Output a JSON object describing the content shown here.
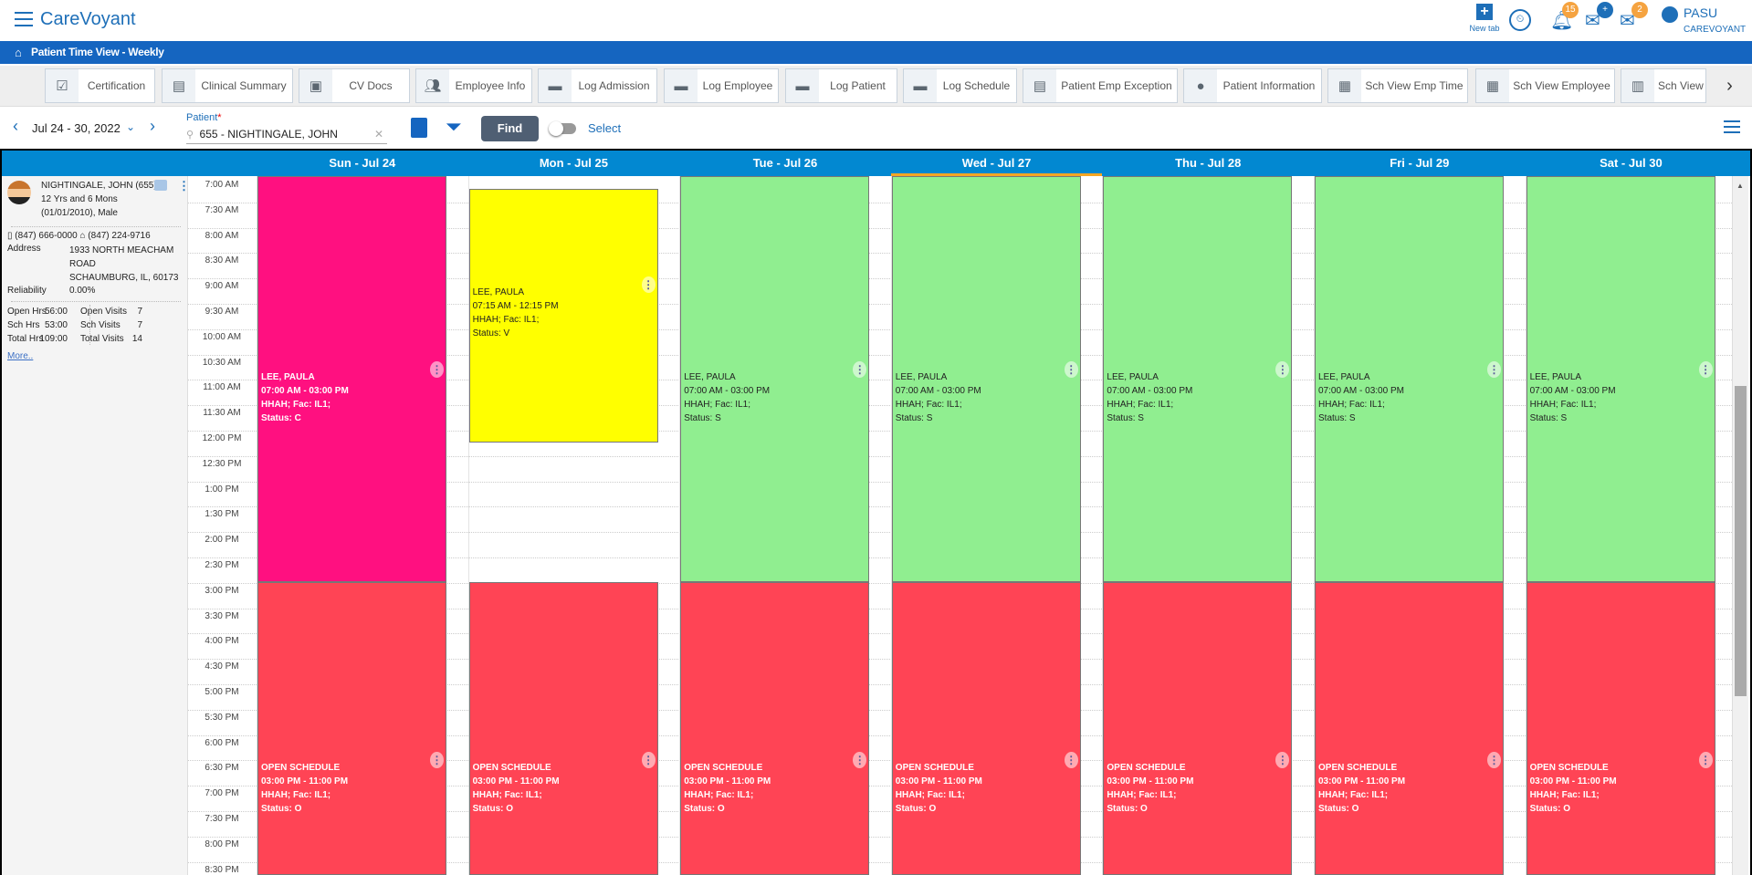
{
  "app": {
    "title": "CareVoyant"
  },
  "topbar": {
    "new_tab_label": "New tab",
    "notifications_count": "15",
    "messages_count": "2",
    "user_name": "PASU",
    "user_org": "CAREVOYANT"
  },
  "breadcrumb": {
    "title": "Patient Time View - Weekly"
  },
  "quick_tabs": [
    {
      "label": "Certification",
      "icon": "clipboard-check"
    },
    {
      "label": "Clinical Summary",
      "icon": "clipboard-list"
    },
    {
      "label": "CV Docs",
      "icon": "document-image"
    },
    {
      "label": "Employee Info",
      "icon": "people"
    },
    {
      "label": "Log Admission",
      "icon": "comment"
    },
    {
      "label": "Log Employee",
      "icon": "comment"
    },
    {
      "label": "Log Patient",
      "icon": "comment"
    },
    {
      "label": "Log Schedule",
      "icon": "comment"
    },
    {
      "label": "Patient Emp Exception",
      "icon": "clipboard-list"
    },
    {
      "label": "Patient Information",
      "icon": "person"
    },
    {
      "label": "Sch View Emp Time",
      "icon": "grid"
    },
    {
      "label": "Sch View Employee",
      "icon": "grid"
    },
    {
      "label": "Sch View",
      "icon": "columns"
    }
  ],
  "toolbar": {
    "date_range": "Jul 24 - 30, 2022",
    "patient_label": "Patient",
    "patient_value": "655 - NIGHTINGALE, JOHN",
    "find_label": "Find",
    "select_label": "Select",
    "select_on": false
  },
  "days": [
    "Sun - Jul 24",
    "Mon - Jul 25",
    "Tue - Jul 26",
    "Wed - Jul 27",
    "Thu - Jul 28",
    "Fri - Jul 29",
    "Sat - Jul 30"
  ],
  "today_index": 3,
  "patient": {
    "name": "NIGHTINGALE, JOHN (655)",
    "age": "12 Yrs and 6 Mons",
    "dob_gender": "(01/01/2010), Male",
    "mobile": "(847) 666-0000",
    "home": "(847) 224-9716",
    "address_label": "Address",
    "address_lines": [
      "1933 NORTH MEACHAM",
      "ROAD",
      "SCHAUMBURG, IL, 60173"
    ],
    "reliability_label": "Reliability",
    "reliability": "0.00%",
    "stats": [
      {
        "l1": "Open Hrs",
        "v1": "56:00",
        "l2": "Open Visits",
        "v2": "7"
      },
      {
        "l1": "Sch Hrs",
        "v1": "53:00",
        "l2": "Sch Visits",
        "v2": "7"
      },
      {
        "l1": "Total Hrs",
        "v1": "109:00",
        "l2": "Total Visits",
        "v2": "14"
      }
    ],
    "more_label": "More.."
  },
  "time_labels": [
    "7:00 AM",
    "7:30 AM",
    "8:00 AM",
    "8:30 AM",
    "9:00 AM",
    "9:30 AM",
    "10:00 AM",
    "10:30 AM",
    "11:00 AM",
    "11:30 AM",
    "12:00 PM",
    "12:30 PM",
    "1:00 PM",
    "1:30 PM",
    "2:00 PM",
    "2:30 PM",
    "3:00 PM",
    "3:30 PM",
    "4:00 PM",
    "4:30 PM",
    "5:00 PM",
    "5:30 PM",
    "6:00 PM",
    "6:30 PM",
    "7:00 PM",
    "7:30 PM",
    "8:00 PM",
    "8:30 PM"
  ],
  "colors": {
    "scheduled": "#90ee90",
    "completed": "#ff1080",
    "verified": "#ffff00",
    "open": "#ff4455",
    "header": "#0288d1",
    "brand": "#1565c0"
  },
  "events": [
    {
      "day": 0,
      "start": 7,
      "end": 15,
      "lines": [
        "LEE, PAULA",
        "07:00 AM - 03:00 PM",
        "HHAH; Fac: IL1;",
        "Status: C"
      ],
      "color": "#ff1080",
      "text": "#fff"
    },
    {
      "day": 1,
      "start": 7.25,
      "end": 12.25,
      "lines": [
        "LEE, PAULA",
        "07:15 AM - 12:15 PM",
        "HHAH; Fac: IL1;",
        "Status: V"
      ],
      "color": "#ffff00",
      "text": "#222"
    },
    {
      "day": 2,
      "start": 7,
      "end": 15,
      "lines": [
        "LEE, PAULA",
        "07:00 AM - 03:00 PM",
        "HHAH; Fac: IL1;",
        "Status: S"
      ],
      "color": "#90ee90",
      "text": "#222"
    },
    {
      "day": 3,
      "start": 7,
      "end": 15,
      "lines": [
        "LEE, PAULA",
        "07:00 AM - 03:00 PM",
        "HHAH; Fac: IL1;",
        "Status: S"
      ],
      "color": "#90ee90",
      "text": "#222"
    },
    {
      "day": 4,
      "start": 7,
      "end": 15,
      "lines": [
        "LEE, PAULA",
        "07:00 AM - 03:00 PM",
        "HHAH; Fac: IL1;",
        "Status: S"
      ],
      "color": "#90ee90",
      "text": "#222"
    },
    {
      "day": 5,
      "start": 7,
      "end": 15,
      "lines": [
        "LEE, PAULA",
        "07:00 AM - 03:00 PM",
        "HHAH; Fac: IL1;",
        "Status: S"
      ],
      "color": "#90ee90",
      "text": "#222"
    },
    {
      "day": 6,
      "start": 7,
      "end": 15,
      "lines": [
        "LEE, PAULA",
        "07:00 AM - 03:00 PM",
        "HHAH; Fac: IL1;",
        "Status: S"
      ],
      "color": "#90ee90",
      "text": "#222"
    },
    {
      "day": 0,
      "start": 15,
      "end": 23,
      "lines": [
        "OPEN SCHEDULE",
        "03:00 PM - 11:00 PM",
        "HHAH; Fac: IL1;",
        "Status: O"
      ],
      "color": "#ff4455",
      "text": "#fff"
    },
    {
      "day": 1,
      "start": 15,
      "end": 23,
      "lines": [
        "OPEN SCHEDULE",
        "03:00 PM - 11:00 PM",
        "HHAH; Fac: IL1;",
        "Status: O"
      ],
      "color": "#ff4455",
      "text": "#fff"
    },
    {
      "day": 2,
      "start": 15,
      "end": 23,
      "lines": [
        "OPEN SCHEDULE",
        "03:00 PM - 11:00 PM",
        "HHAH; Fac: IL1;",
        "Status: O"
      ],
      "color": "#ff4455",
      "text": "#fff"
    },
    {
      "day": 3,
      "start": 15,
      "end": 23,
      "lines": [
        "OPEN SCHEDULE",
        "03:00 PM - 11:00 PM",
        "HHAH; Fac: IL1;",
        "Status: O"
      ],
      "color": "#ff4455",
      "text": "#fff"
    },
    {
      "day": 4,
      "start": 15,
      "end": 23,
      "lines": [
        "OPEN SCHEDULE",
        "03:00 PM - 11:00 PM",
        "HHAH; Fac: IL1;",
        "Status: O"
      ],
      "color": "#ff4455",
      "text": "#fff"
    },
    {
      "day": 5,
      "start": 15,
      "end": 23,
      "lines": [
        "OPEN SCHEDULE",
        "03:00 PM - 11:00 PM",
        "HHAH; Fac: IL1;",
        "Status: O"
      ],
      "color": "#ff4455",
      "text": "#fff"
    },
    {
      "day": 6,
      "start": 15,
      "end": 23,
      "lines": [
        "OPEN SCHEDULE",
        "03:00 PM - 11:00 PM",
        "HHAH; Fac: IL1;",
        "Status: O"
      ],
      "color": "#ff4455",
      "text": "#fff"
    }
  ]
}
